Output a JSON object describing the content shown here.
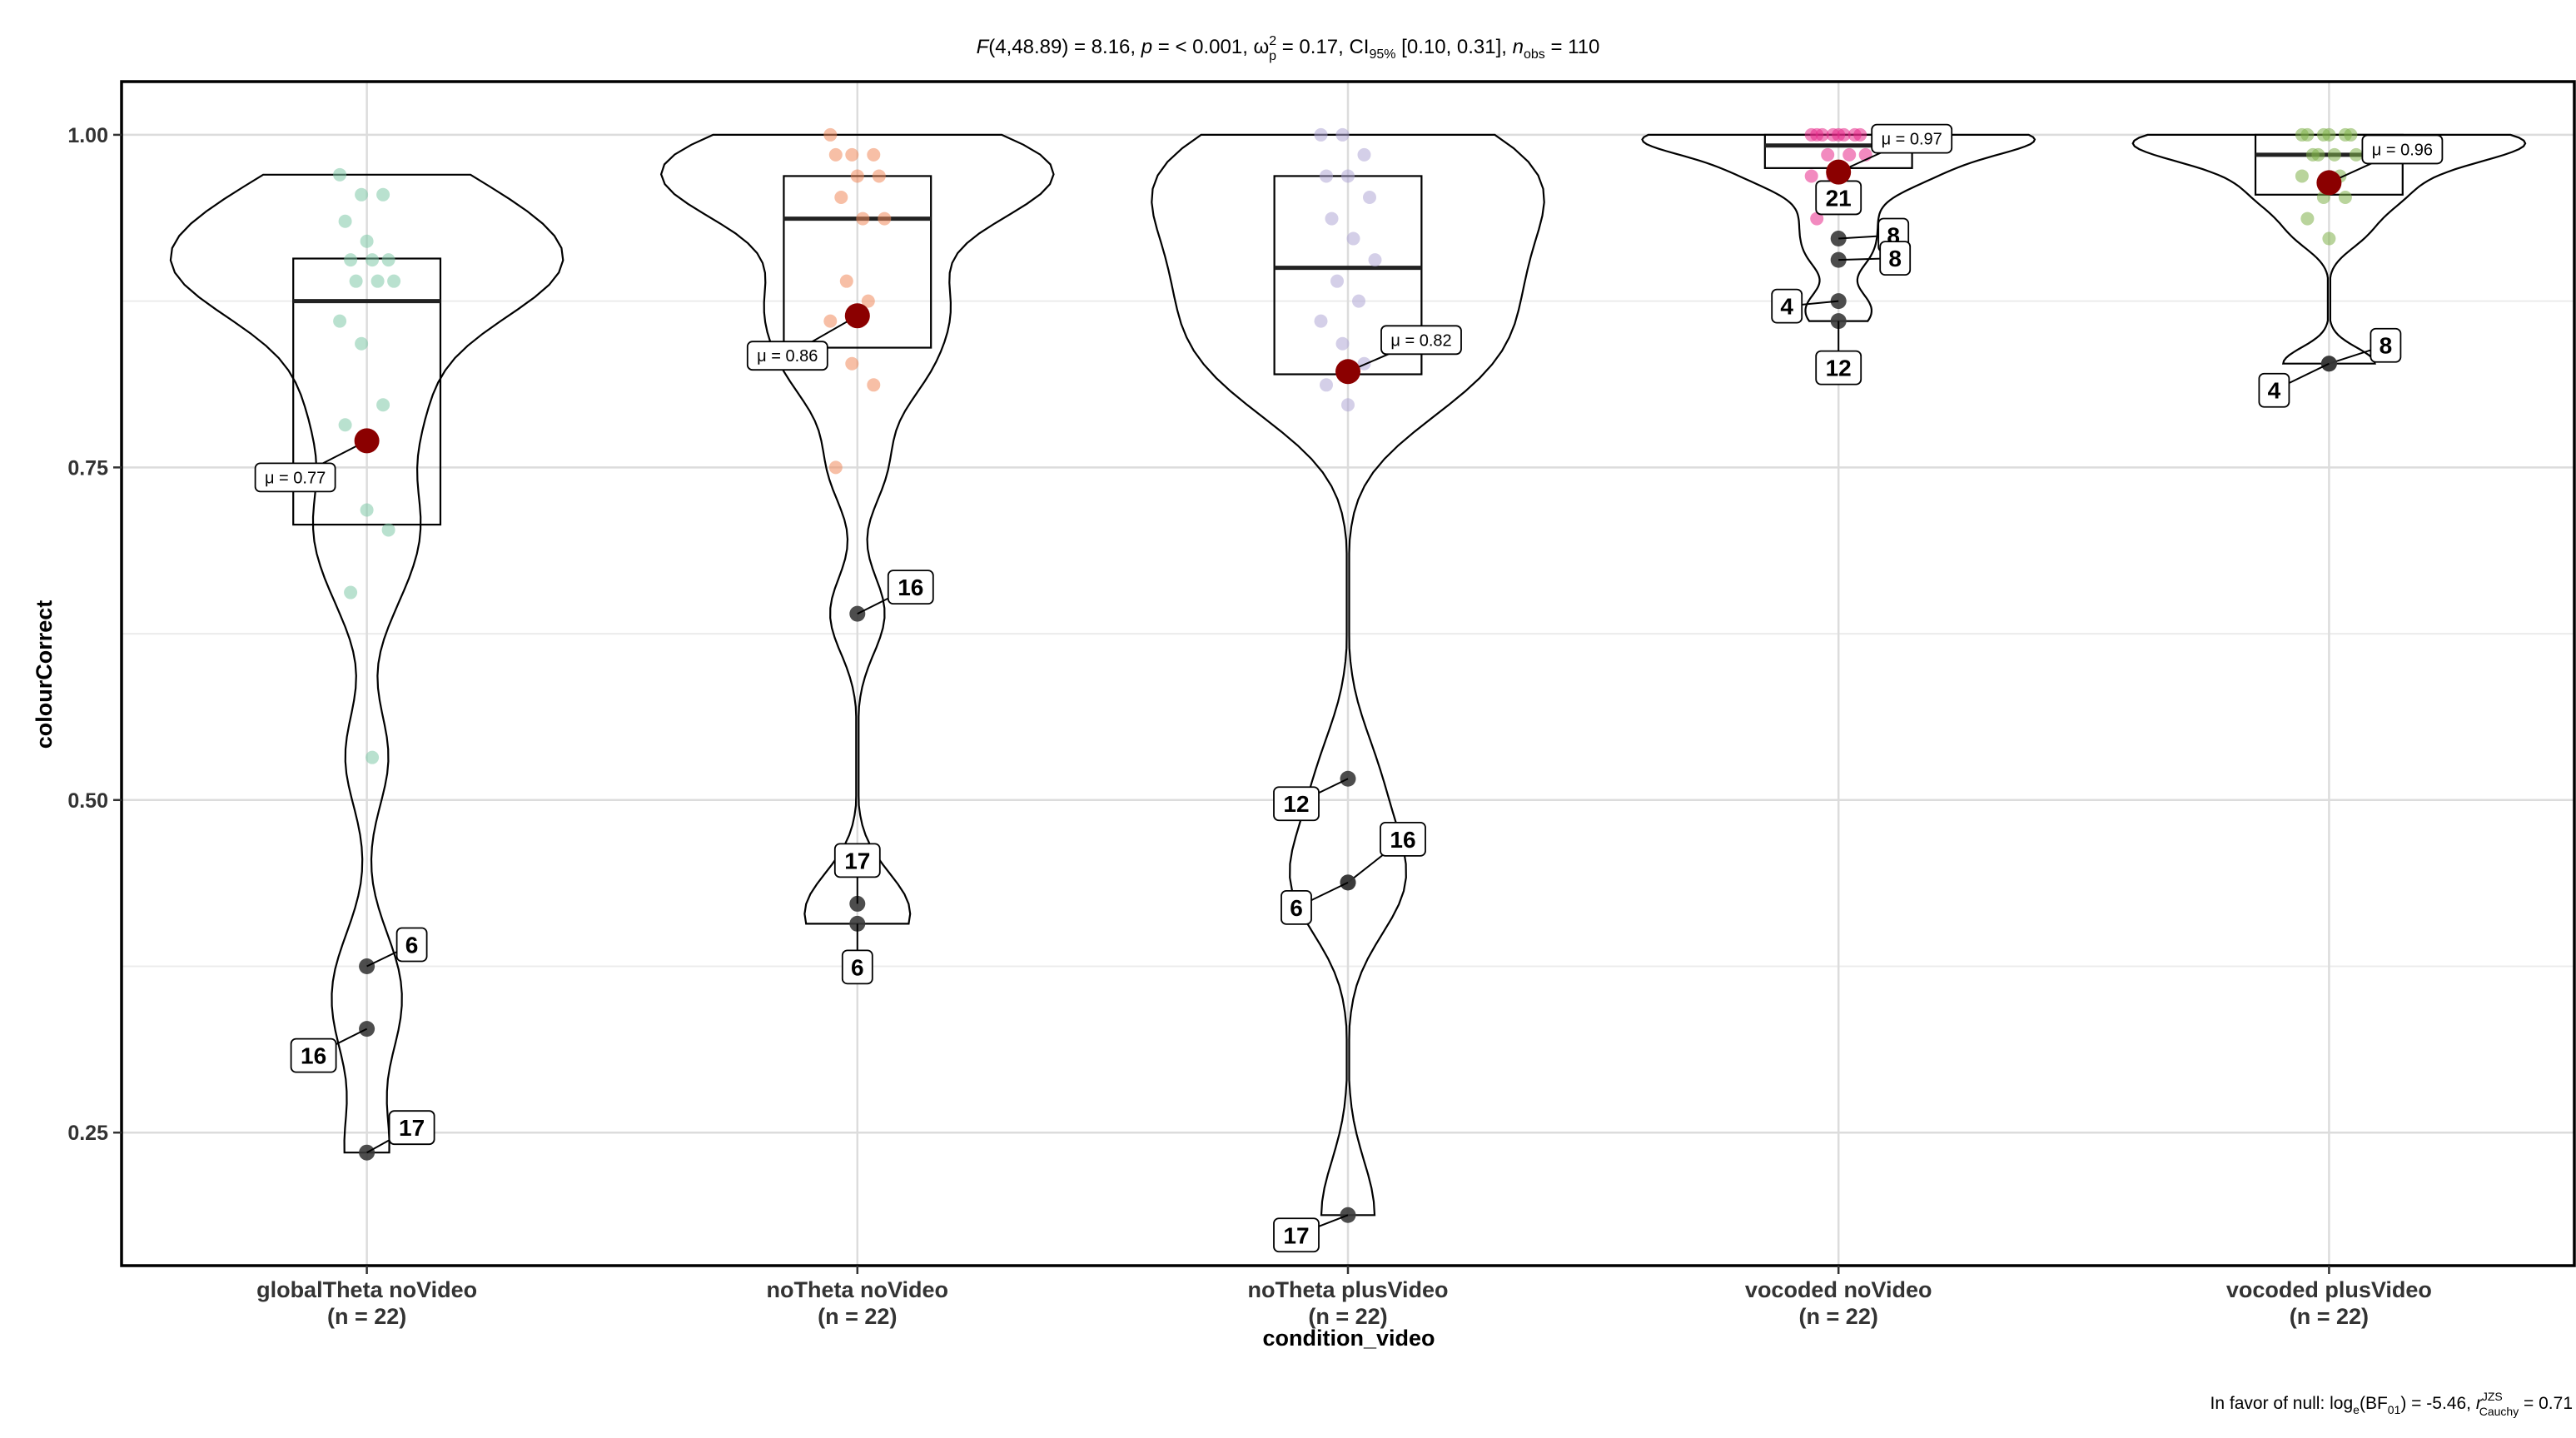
{
  "chart_data": {
    "type": "violin-box-scatter",
    "subtitle": "F(4,48.89) = 8.16, p = < 0.001, ω²p = 0.17, CI95% [0.10, 0.31], nobs = 110",
    "subtitle_parts": {
      "f_stat": "F",
      "f_args": "(4,48.89) = 8.16, ",
      "p_sym": "p",
      "p_text": " = < 0.001, ω",
      "omega_sup": "2",
      "omega_sub": "p",
      "omega_val": " = 0.17, CI",
      "ci_sub": "95%",
      "ci_val": " [0.10, 0.31], ",
      "n_sym": "n",
      "n_sub": "obs",
      "n_val": " = 110"
    },
    "caption": "In favor of null: loge(BF01) = -5.46, rJZS Cauchy = 0.71",
    "caption_parts": {
      "pre": "In favor of null: log",
      "log_sub": "e",
      "bf": "(BF",
      "bf_sub": "01",
      "bf_val": ") = -5.46, ",
      "r_sym": "r",
      "r_sup": "JZS",
      "r_sub": "Cauchy",
      "r_val": " = 0.71"
    },
    "xlabel": "condition_video",
    "ylabel": "colourCorrect",
    "ylim": [
      0.15,
      1.04
    ],
    "yticks": [
      0.25,
      0.5,
      0.75,
      1.0
    ],
    "ytick_labels": [
      "0.25",
      "0.50",
      "0.75",
      "1.00"
    ],
    "grid": true,
    "categories": [
      "globalTheta noVideo",
      "noTheta noVideo",
      "noTheta plusVideo",
      "vocoded noVideo",
      "vocoded plusVideo"
    ],
    "n_labels": [
      "(n = 22)",
      "(n = 22)",
      "(n = 22)",
      "(n = 22)",
      "(n = 22)"
    ],
    "colors": [
      "#7fc9a8",
      "#f08a5d",
      "#b1a8d6",
      "#e7298a",
      "#7fb04a"
    ],
    "mean_color": "#8b0000",
    "outlier_color": "#3a3a3a",
    "groups": [
      {
        "box": {
          "q1": 0.707,
          "median": 0.875,
          "q3": 0.907
        },
        "mean": 0.77,
        "mean_label": "μ = 0.77",
        "violin_range": [
          0.235,
          0.97
        ],
        "points": [
          0.97,
          0.955,
          0.955,
          0.935,
          0.92,
          0.906,
          0.906,
          0.906,
          0.89,
          0.89,
          0.89,
          0.86,
          0.843,
          0.797,
          0.782,
          0.718,
          0.703,
          0.656,
          0.532
        ],
        "outliers": [
          {
            "y": 0.375,
            "label": "6"
          },
          {
            "y": 0.328,
            "label": "16"
          },
          {
            "y": 0.235,
            "label": "17"
          }
        ]
      },
      {
        "box": {
          "q1": 0.84,
          "median": 0.937,
          "q3": 0.969
        },
        "mean": 0.864,
        "mean_label": "μ = 0.86",
        "violin_range": [
          0.407,
          1.0
        ],
        "points": [
          1.0,
          0.985,
          0.985,
          0.985,
          0.969,
          0.969,
          0.953,
          0.937,
          0.937,
          0.89,
          0.875,
          0.86,
          0.828,
          0.812,
          0.75
        ],
        "outliers": [
          {
            "y": 0.64,
            "label": "16"
          },
          {
            "y": 0.422,
            "label": "17"
          },
          {
            "y": 0.407,
            "label": "6"
          }
        ]
      },
      {
        "box": {
          "q1": 0.82,
          "median": 0.9,
          "q3": 0.969
        },
        "mean": 0.822,
        "mean_label": "μ = 0.82",
        "violin_range": [
          0.188,
          1.0
        ],
        "points": [
          1.0,
          1.0,
          0.985,
          0.969,
          0.969,
          0.953,
          0.937,
          0.922,
          0.906,
          0.89,
          0.875,
          0.86,
          0.843,
          0.828,
          0.812,
          0.797
        ],
        "outliers": [
          {
            "y": 0.516,
            "label": "12"
          },
          {
            "y": 0.438,
            "label": "16"
          },
          {
            "y": 0.438,
            "label": "6"
          },
          {
            "y": 0.188,
            "label": "17"
          }
        ]
      },
      {
        "box": {
          "q1": 0.975,
          "median": 0.992,
          "q3": 1.0
        },
        "mean": 0.972,
        "mean_label": "μ = 0.97",
        "violin_range": [
          0.86,
          1.0
        ],
        "points": [
          1.0,
          1.0,
          1.0,
          1.0,
          1.0,
          1.0,
          1.0,
          1.0,
          0.985,
          0.985,
          0.985,
          0.969,
          0.969,
          0.953,
          0.937
        ],
        "outliers": [
          {
            "y": 0.969,
            "label": "21"
          },
          {
            "y": 0.922,
            "label": "8"
          },
          {
            "y": 0.906,
            "label": "8"
          },
          {
            "y": 0.875,
            "label": "4"
          },
          {
            "y": 0.86,
            "label": "12"
          }
        ]
      },
      {
        "box": {
          "q1": 0.955,
          "median": 0.985,
          "q3": 1.0
        },
        "mean": 0.964,
        "mean_label": "μ = 0.96",
        "violin_range": [
          0.828,
          1.0
        ],
        "points": [
          1.0,
          1.0,
          1.0,
          1.0,
          1.0,
          1.0,
          0.985,
          0.985,
          0.985,
          0.985,
          0.969,
          0.969,
          0.953,
          0.953,
          0.937,
          0.922
        ],
        "outliers": [
          {
            "y": 0.828,
            "label": "8"
          },
          {
            "y": 0.828,
            "label": "4"
          }
        ]
      }
    ]
  }
}
